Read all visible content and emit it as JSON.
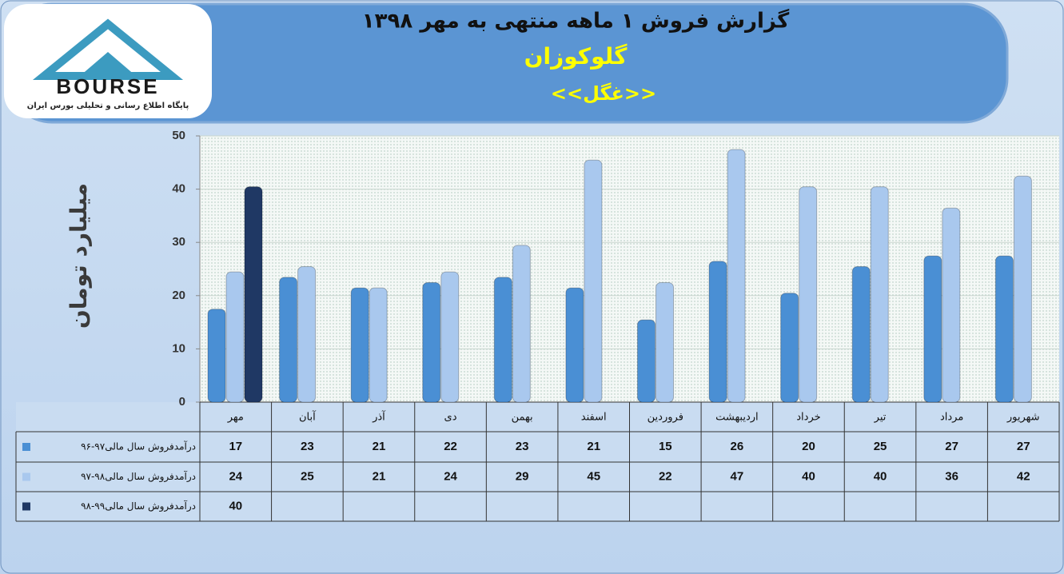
{
  "logo": {
    "name": "BOURSE",
    "tagline": "پایگاه اطلاع رسانی و تحلیلی بورس ایران"
  },
  "chart_data": {
    "type": "bar",
    "title": "گزارش  فروش ۱ ماهه منتهی به مهر ۱۳۹۸",
    "subtitle": "گلوکوزان",
    "symbol": "<<غگل>>",
    "y_label": "میلیارد تومان",
    "categories": [
      "مهر",
      "آبان",
      "آذر",
      "دی",
      "بهمن",
      "اسفند",
      "فروردین",
      "اردیبهشت",
      "خرداد",
      "تیر",
      "مرداد",
      "شهریور"
    ],
    "series": [
      {
        "name": "درآمدفروش سال مالی۹۷-۹۶",
        "color": "#4a8fd4",
        "values": [
          17,
          23,
          21,
          22,
          23,
          21,
          15,
          26,
          20,
          25,
          27,
          27
        ]
      },
      {
        "name": "درآمدفروش سال مالی۹۸-۹۷",
        "color": "#a9c8ee",
        "values": [
          24,
          25,
          21,
          24,
          29,
          45,
          22,
          47,
          40,
          40,
          36,
          42
        ]
      },
      {
        "name": "درآمدفروش سال مالی۹۹-۹۸",
        "color": "#1f3864",
        "values": [
          40,
          null,
          null,
          null,
          null,
          null,
          null,
          null,
          null,
          null,
          null,
          null
        ]
      }
    ],
    "ylim": [
      0,
      50
    ],
    "yticks": [
      0,
      10,
      20,
      30,
      40,
      50
    ],
    "grid": true
  }
}
